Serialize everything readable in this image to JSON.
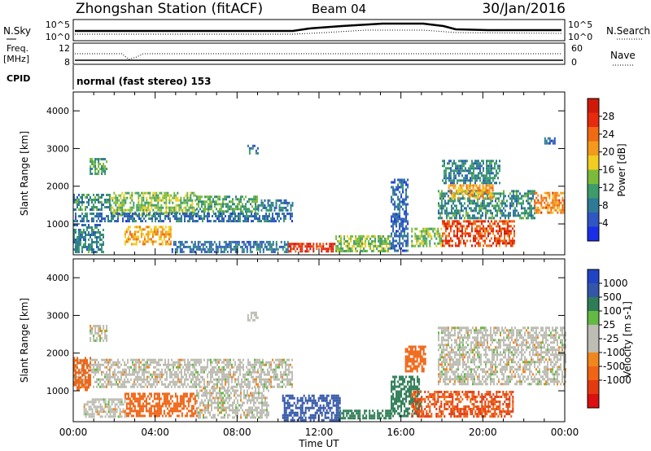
{
  "header": {
    "title": "Zhongshan Station (fitACF)",
    "beam": "Beam 04",
    "date": "30/Jan/2016"
  },
  "top_panels": {
    "nsky_label": "N.Sky",
    "nsky_ticks": [
      "10^5",
      "10^0"
    ],
    "nsearch_label": "N.Search",
    "nsearch_ticks": [
      "10^5",
      "10^0"
    ],
    "freq_label": "Freq.",
    "freq_unit": "[MHz]",
    "freq_ticks": [
      "12",
      "8"
    ],
    "nave_label": "Nave",
    "nave_ticks": [
      "60",
      "0"
    ],
    "cpid_label": "CPID",
    "cpid_text": "normal (fast stereo) 153"
  },
  "colors": {
    "power_scale": [
      "#1a2ee8",
      "#2f56c2",
      "#2f7a96",
      "#3e9c6a",
      "#7cbb3a",
      "#f0cd21",
      "#f39a1c",
      "#f06a14",
      "#e62a0d",
      "#cf1a0a"
    ],
    "velocity_scale": [
      "#2143c6",
      "#3356a8",
      "#2f7d56",
      "#64b944",
      "#bdbdb4",
      "#bdbdb4",
      "#f0861c",
      "#f06414",
      "#e43a10",
      "#dc1010"
    ]
  },
  "chart_data": [
    {
      "type": "heatmap",
      "panel": "power",
      "ylabel": "Slant Range [km]",
      "ylim": [
        180,
        4500
      ],
      "yticks": [
        "1000",
        "2000",
        "3000",
        "4000"
      ],
      "xticks": [
        "00:00",
        "04:00",
        "08:00",
        "12:00",
        "16:00",
        "20:00",
        "00:00"
      ],
      "colorbar_label": "Power [dB]",
      "colorbar_ticks": [
        "4",
        "8",
        "12",
        "16",
        "20",
        "24",
        "28"
      ],
      "cmin": 0,
      "cmax": 32,
      "regions": [
        {
          "t0": 0.8,
          "t1": 1.6,
          "r0": 2350,
          "r1": 2750,
          "v": 12
        },
        {
          "t0": 0.0,
          "t1": 1.8,
          "r0": 1350,
          "r1": 1800,
          "v": 10
        },
        {
          "t0": 1.8,
          "t1": 6.0,
          "r0": 1250,
          "r1": 1850,
          "v": 14
        },
        {
          "t0": 6.0,
          "t1": 9.0,
          "r0": 1300,
          "r1": 1750,
          "v": 12
        },
        {
          "t0": 9.0,
          "t1": 10.7,
          "r0": 1350,
          "r1": 1650,
          "v": 8
        },
        {
          "t0": 0.0,
          "t1": 10.7,
          "r0": 1050,
          "r1": 1300,
          "v": 7
        },
        {
          "t0": 2.5,
          "t1": 4.8,
          "r0": 450,
          "r1": 950,
          "v": 20
        },
        {
          "t0": 0.0,
          "t1": 1.5,
          "r0": 250,
          "r1": 1000,
          "v": 9
        },
        {
          "t0": 4.8,
          "t1": 10.5,
          "r0": 250,
          "r1": 550,
          "v": 7
        },
        {
          "t0": 10.5,
          "t1": 12.8,
          "r0": 250,
          "r1": 500,
          "v": 28
        },
        {
          "t0": 12.8,
          "t1": 15.5,
          "r0": 250,
          "r1": 700,
          "v": 14
        },
        {
          "t0": 15.5,
          "t1": 16.3,
          "r0": 300,
          "r1": 2200,
          "v": 6
        },
        {
          "t0": 16.5,
          "t1": 18.0,
          "r0": 400,
          "r1": 900,
          "v": 14
        },
        {
          "t0": 18.0,
          "t1": 21.5,
          "r0": 450,
          "r1": 1100,
          "v": 26
        },
        {
          "t0": 17.8,
          "t1": 22.5,
          "r0": 1150,
          "r1": 1900,
          "v": 10
        },
        {
          "t0": 18.0,
          "t1": 20.8,
          "r0": 2100,
          "r1": 2700,
          "v": 9
        },
        {
          "t0": 18.3,
          "t1": 20.5,
          "r0": 1700,
          "r1": 2050,
          "v": 20
        },
        {
          "t0": 22.5,
          "t1": 24.0,
          "r0": 1300,
          "r1": 1850,
          "v": 22
        },
        {
          "t0": 8.5,
          "t1": 9.0,
          "r0": 2850,
          "r1": 3100,
          "v": 8
        },
        {
          "t0": 23.0,
          "t1": 23.5,
          "r0": 3150,
          "r1": 3300,
          "v": 6
        }
      ]
    },
    {
      "type": "heatmap",
      "panel": "velocity",
      "ylabel": "Slant Range [km]",
      "ylim": [
        180,
        4500
      ],
      "yticks": [
        "1000",
        "2000",
        "3000",
        "4000"
      ],
      "xticks": [
        "00:00",
        "04:00",
        "08:00",
        "12:00",
        "16:00",
        "20:00",
        "00:00"
      ],
      "xlabel": "Time UT",
      "colorbar_label": "Velocity [m s-1]",
      "colorbar_ticks": [
        "1000",
        "500",
        "100",
        "25",
        "-25",
        "-100",
        "-500",
        "-1000"
      ],
      "regions": [
        {
          "t0": 0.0,
          "t1": 10.7,
          "r0": 1100,
          "r1": 1850,
          "v": 0
        },
        {
          "t0": 0.8,
          "t1": 1.6,
          "r0": 2350,
          "r1": 2750,
          "v": 0
        },
        {
          "t0": 0.0,
          "t1": 0.8,
          "r0": 1050,
          "r1": 1900,
          "v": -300
        },
        {
          "t0": 2.5,
          "t1": 6.0,
          "r0": 350,
          "r1": 950,
          "v": -350
        },
        {
          "t0": 0.5,
          "t1": 2.5,
          "r0": 300,
          "r1": 800,
          "v": 0
        },
        {
          "t0": 6.0,
          "t1": 9.5,
          "r0": 300,
          "r1": 1100,
          "v": 0
        },
        {
          "t0": 10.2,
          "t1": 13.0,
          "r0": 250,
          "r1": 900,
          "v": 700
        },
        {
          "t0": 13.0,
          "t1": 15.5,
          "r0": 250,
          "r1": 500,
          "v": 250
        },
        {
          "t0": 15.5,
          "t1": 17.0,
          "r0": 300,
          "r1": 1400,
          "v": 250
        },
        {
          "t0": 16.5,
          "t1": 21.5,
          "r0": 350,
          "r1": 1000,
          "v": -500
        },
        {
          "t0": 17.8,
          "t1": 24.0,
          "r0": 1150,
          "r1": 2700,
          "v": 0
        },
        {
          "t0": 16.2,
          "t1": 17.2,
          "r0": 1500,
          "r1": 2200,
          "v": -200
        },
        {
          "t0": 8.5,
          "t1": 9.0,
          "r0": 2850,
          "r1": 3100,
          "v": 0
        }
      ]
    }
  ]
}
